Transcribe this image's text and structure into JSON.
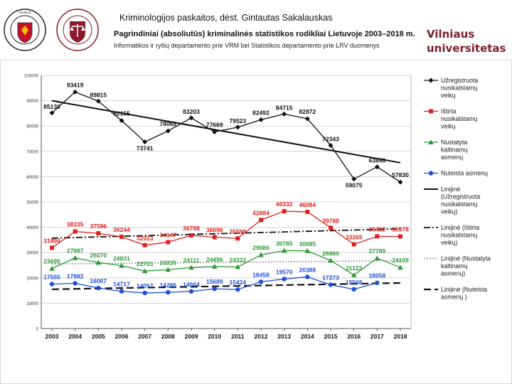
{
  "header": {
    "course": "Kriminologijos paskaitos, dėst. Gintautas Sakalauskas",
    "university": [
      "Vilniaus",
      "universitetas"
    ],
    "logo1_text": "VILNIAUS UNIVERSITETAS 1579",
    "logo2_text": "TEISĖS FAKULTETAS 1641 VILNIAUS UNIVERSITETAS"
  },
  "chart_data": {
    "type": "line",
    "title": "Pagrindiniai (absoliutūs) kriminalinės statistikos rodikliai Lietuvoje 2003–2018 m.",
    "subtitle": "Informatikos ir ryšių departamento prie VRM bei Statistikos departamento prie LRV duomenys",
    "ylim": [
      0,
      100000
    ],
    "yticks": [
      0,
      10000,
      20000,
      30000,
      40000,
      50000,
      60000,
      70000,
      80000,
      90000,
      100000
    ],
    "categories": [
      "2003",
      "2004",
      "2005",
      "2006",
      "2007",
      "2008",
      "2009",
      "2010",
      "2011",
      "2012",
      "2013",
      "2014",
      "2015",
      "2016",
      "2017",
      "2018"
    ],
    "series": [
      {
        "name": "Užregistruota nusikalstamų veikų",
        "legend": [
          "Užregistruota",
          "nusikalstamų",
          "veikų"
        ],
        "color": "#111111",
        "marker": "diamond",
        "values": [
          85130,
          93419,
          89815,
          82155,
          73741,
          78068,
          83203,
          77669,
          79523,
          82492,
          84715,
          82872,
          72343,
          59075,
          63846,
          57830
        ],
        "labels": [
          "85130",
          "93419",
          "89815",
          "82155",
          "73741",
          "78068",
          "83203",
          "77669",
          "79523",
          "82492",
          "84715",
          "82872",
          "72343",
          "59075",
          "63846",
          "57830"
        ]
      },
      {
        "name": "Ištirta nusikalstamų veikų",
        "legend": [
          "Ištirta",
          "nusikalstamų",
          "veikų"
        ],
        "color": "#e02020",
        "marker": "square",
        "values": [
          31894,
          38335,
          37596,
          36244,
          32923,
          34147,
          36788,
          36096,
          35598,
          42884,
          46332,
          46084,
          39788,
          33265,
          36412,
          36378
        ],
        "labels": [
          "31894",
          "38335",
          "37596",
          "36244",
          "32923",
          "34147",
          "36788",
          "36096",
          "35598",
          "42884",
          "46332",
          "46084",
          "39788",
          "33265",
          "36412",
          "36378"
        ]
      },
      {
        "name": "Nustatyta kaltinamų asmenų",
        "legend": [
          "Nustatyta",
          "kaltinamų",
          "asmenų"
        ],
        "color": "#2e9a36",
        "marker": "triangle",
        "values": [
          23695,
          27887,
          26070,
          24831,
          22703,
          23235,
          24111,
          24496,
          24332,
          29086,
          30785,
          30685,
          26860,
          21123,
          27789,
          24109
        ],
        "labels": [
          "23695",
          "27887",
          "26070",
          "24831",
          "22703",
          "23235",
          "24111",
          "24496",
          "24332",
          "29086",
          "30785",
          "30685",
          "26860",
          "21123",
          "27789",
          "24109"
        ]
      },
      {
        "name": "Nuteista asmenų",
        "legend": [
          "Nuteista asmenų"
        ],
        "color": "#1f4fd8",
        "marker": "circle",
        "values": [
          17555,
          17882,
          16007,
          14717,
          14057,
          14295,
          14664,
          15689,
          15424,
          18458,
          19570,
          20388,
          17273,
          15508,
          18058,
          null
        ],
        "labels": [
          "17555",
          "17882",
          "16007",
          "14717",
          "14057",
          "14295",
          "14664",
          "15689",
          "15424",
          "18458",
          "19570",
          "20388",
          "17273",
          "15508",
          "18058",
          ""
        ]
      }
    ],
    "trendlines": [
      {
        "legend": [
          "Linijinė",
          "(Užregistruota",
          "nusikalstamų",
          "veikų)"
        ],
        "style": "solid",
        "color": "#111111",
        "start": 90000,
        "end": 65500
      },
      {
        "legend": [
          "Linijinė (Ištirta",
          "nusikalstamų",
          "veikų)"
        ],
        "style": "dashdot",
        "color": "#111111",
        "start": 35700,
        "end": 39400
      },
      {
        "legend": [
          "Linijinė (Nustatyta",
          "kaltinamų",
          "asmenų)"
        ],
        "style": "dotted",
        "color": "#9a9a9a",
        "start": 25500,
        "end": 26800
      },
      {
        "legend": [
          "Linijinė (Nuteista",
          "asmenų )"
        ],
        "style": "dashed",
        "color": "#111111",
        "start": 15500,
        "end": 18000
      }
    ]
  }
}
